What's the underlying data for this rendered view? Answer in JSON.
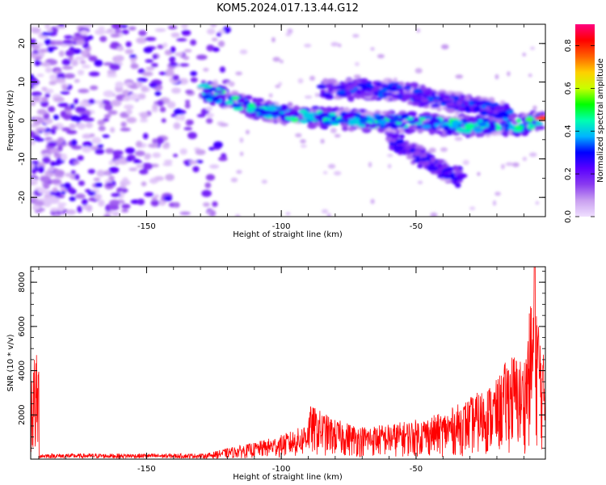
{
  "title": "KOM5.2024.017.13.44.G12",
  "chart_data": [
    {
      "type": "heatmap",
      "title": "KOM5.2024.017.13.44.G12",
      "xlabel": "Height of straight line (km)",
      "ylabel": "Frequency (Hz)",
      "xlim": [
        -193,
        -2
      ],
      "ylim": [
        -25,
        25
      ],
      "x_ticks": [
        -150,
        -100,
        -50
      ],
      "y_ticks": [
        -20,
        -10,
        0,
        10,
        20
      ],
      "colorbar": {
        "label": "Normalized spectral amplitude",
        "range": [
          0.0,
          0.9
        ],
        "ticks": [
          0.0,
          0.2,
          0.4,
          0.6,
          0.8
        ],
        "colormap": [
          "#f0e0ff",
          "#c9a0f0",
          "#8a3cf0",
          "#5a00ff",
          "#0000ff",
          "#00b4ff",
          "#00ffb0",
          "#00ff00",
          "#c8ff00",
          "#ffd000",
          "#ff6000",
          "#ff0000",
          "#ff0080"
        ]
      },
      "features": [
        {
          "name": "broadband noise",
          "x_range": [
            -193,
            -120
          ],
          "y_range": [
            -25,
            25
          ],
          "level": 0.2
        },
        {
          "name": "main branch",
          "points": [
            [
              -130,
              8
            ],
            [
              -110,
              3
            ],
            [
              -90,
              1
            ],
            [
              -70,
              0
            ],
            [
              -50,
              -0.5
            ],
            [
              -30,
              -1.5
            ],
            [
              -10,
              -1
            ],
            [
              -3,
              0.5
            ]
          ],
          "level": 0.6
        },
        {
          "name": "upper branch",
          "points": [
            [
              -85,
              8
            ],
            [
              -60,
              8
            ],
            [
              -45,
              6
            ],
            [
              -30,
              4
            ],
            [
              -15,
              2
            ]
          ],
          "level": 0.35
        },
        {
          "name": "lower branch",
          "points": [
            [
              -60,
              -4
            ],
            [
              -50,
              -9
            ],
            [
              -40,
              -13
            ],
            [
              -33,
              -15
            ]
          ],
          "level": 0.3
        }
      ]
    },
    {
      "type": "line",
      "xlabel": "Height of straight line (km)",
      "ylabel": "SNR (10 * v/v)",
      "xlim": [
        -193,
        -2
      ],
      "ylim": [
        0,
        8700
      ],
      "x_ticks": [
        -150,
        -100,
        -50
      ],
      "y_ticks": [
        2000,
        4000,
        6000,
        8000
      ],
      "color": "#ff0000",
      "envelope": [
        {
          "x": -190,
          "y": 250
        },
        {
          "x": -150,
          "y": 250
        },
        {
          "x": -128,
          "y": 250
        },
        {
          "x": -120,
          "y": 500
        },
        {
          "x": -110,
          "y": 750
        },
        {
          "x": -100,
          "y": 1100
        },
        {
          "x": -92,
          "y": 1500
        },
        {
          "x": -89,
          "y": 2450
        },
        {
          "x": -80,
          "y": 1800
        },
        {
          "x": -70,
          "y": 1500
        },
        {
          "x": -60,
          "y": 1600
        },
        {
          "x": -50,
          "y": 1800
        },
        {
          "x": -40,
          "y": 2100
        },
        {
          "x": -30,
          "y": 2800
        },
        {
          "x": -20,
          "y": 3600
        },
        {
          "x": -15,
          "y": 4900
        },
        {
          "x": -10,
          "y": 4500
        },
        {
          "x": -6,
          "y": 8700
        },
        {
          "x": -3,
          "y": 4800
        }
      ]
    }
  ]
}
